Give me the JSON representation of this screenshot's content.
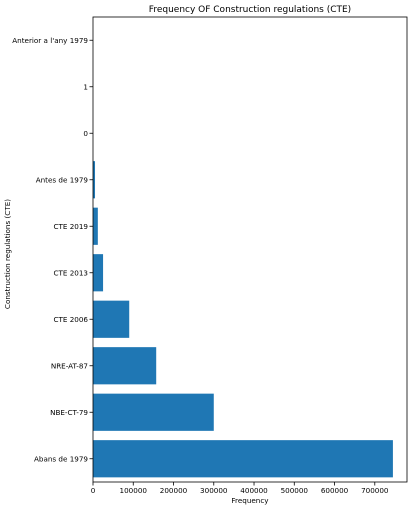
{
  "chart_data": {
    "type": "bar",
    "orientation": "horizontal",
    "title": "Frequency OF Construction regulations (CTE)",
    "xlabel": "Frequency",
    "ylabel": "Construction regulations (CTE)",
    "categories": [
      "Abans de 1979",
      "NBE-CT-79",
      "NRE-AT-87",
      "CTE 2006",
      "CTE 2013",
      "CTE 2019",
      "Antes de 1979",
      "0",
      "1",
      "Anterior a l'any 1979"
    ],
    "values": [
      745000,
      300000,
      157000,
      90000,
      25000,
      12000,
      5000,
      0,
      0,
      0
    ],
    "xlim": [
      0,
      780000
    ],
    "xticks": [
      0,
      100000,
      200000,
      300000,
      400000,
      500000,
      600000,
      700000
    ],
    "xtick_labels": [
      "0",
      "100000",
      "200000",
      "300000",
      "400000",
      "500000",
      "600000",
      "700000"
    ],
    "grid": false,
    "bar_color": "#1f77b4"
  }
}
